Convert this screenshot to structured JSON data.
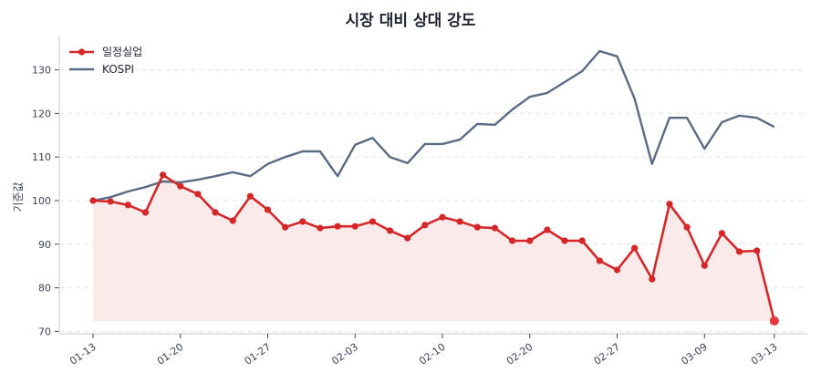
{
  "chart_data": {
    "type": "line",
    "title": "시장 대비 상대 강도",
    "xlabel": "",
    "ylabel": "기준값",
    "ylim": [
      70,
      137
    ],
    "yticks": [
      70,
      80,
      90,
      100,
      110,
      120,
      130
    ],
    "grid": {
      "y": true,
      "x": false,
      "style": "dashed"
    },
    "legend": {
      "position": "upper left",
      "entries": [
        "일정실업",
        "KOSPI"
      ]
    },
    "xtick_labels": [
      {
        "index": 0,
        "label": "01-13"
      },
      {
        "index": 5,
        "label": "01-20"
      },
      {
        "index": 10,
        "label": "01-27"
      },
      {
        "index": 15,
        "label": "02-03"
      },
      {
        "index": 20,
        "label": "02-10"
      },
      {
        "index": 25,
        "label": "02-20"
      },
      {
        "index": 30,
        "label": "02-27"
      },
      {
        "index": 35,
        "label": "03-09"
      },
      {
        "index": 39,
        "label": "03-13"
      }
    ],
    "series": [
      {
        "name": "일정실업",
        "color": "#d62728",
        "marker": true,
        "fill": "#fbeaea",
        "values": [
          100.0,
          99.8,
          99.0,
          97.3,
          105.9,
          103.3,
          101.5,
          97.3,
          95.4,
          101.0,
          97.9,
          93.9,
          95.2,
          93.7,
          94.1,
          94.1,
          95.2,
          93.1,
          91.4,
          94.4,
          96.2,
          95.2,
          93.9,
          93.7,
          90.8,
          90.8,
          93.3,
          90.8,
          90.8,
          86.2,
          84.1,
          89.1,
          82.0,
          99.2,
          93.9,
          85.1,
          92.5,
          88.3,
          88.5,
          72.4
        ]
      },
      {
        "name": "KOSPI",
        "color": "#5a6b85",
        "marker": false,
        "values": [
          100.0,
          100.8,
          102.1,
          103.1,
          104.4,
          104.2,
          104.8,
          105.6,
          106.5,
          105.6,
          108.4,
          110.0,
          111.3,
          111.3,
          105.6,
          112.8,
          114.4,
          110.0,
          108.6,
          113.0,
          113.0,
          114.0,
          117.6,
          117.4,
          120.9,
          123.8,
          124.7,
          127.2,
          129.7,
          134.3,
          133.1,
          123.4,
          108.4,
          119.0,
          119.0,
          111.9,
          118.0,
          119.5,
          119.0,
          116.9
        ]
      }
    ]
  }
}
